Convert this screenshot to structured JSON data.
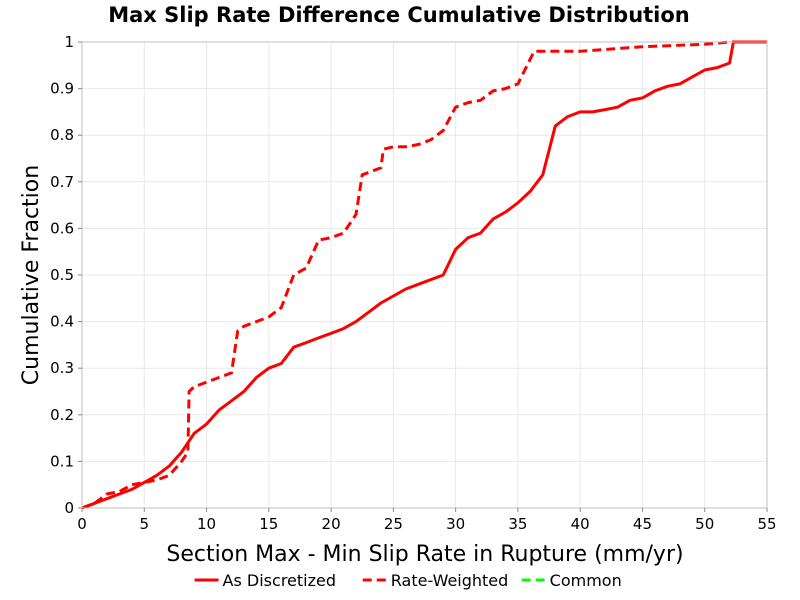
{
  "chart_data": {
    "type": "line",
    "title": "Max Slip Rate Difference Cumulative Distribution",
    "xlabel": "Section Max - Min Slip Rate in Rupture (mm/yr)",
    "ylabel": "Cumulative Fraction",
    "xlim": [
      0,
      55
    ],
    "ylim": [
      0,
      1
    ],
    "xticks": [
      "0",
      "5",
      "10",
      "15",
      "20",
      "25",
      "30",
      "35",
      "40",
      "45",
      "50",
      "55"
    ],
    "yticks": [
      "0",
      "0.1",
      "0.2",
      "0.3",
      "0.4",
      "0.5",
      "0.6",
      "0.7",
      "0.8",
      "0.9",
      "1"
    ],
    "grid": true,
    "legend_position": "bottom",
    "series": [
      {
        "name": "As Discretized",
        "color": "#ff0000",
        "style": "solid",
        "points": [
          [
            0,
            0
          ],
          [
            1,
            0.01
          ],
          [
            2,
            0.02
          ],
          [
            3,
            0.03
          ],
          [
            4,
            0.04
          ],
          [
            5,
            0.055
          ],
          [
            6,
            0.07
          ],
          [
            7,
            0.09
          ],
          [
            8,
            0.12
          ],
          [
            8.5,
            0.14
          ],
          [
            9,
            0.16
          ],
          [
            10,
            0.18
          ],
          [
            11,
            0.21
          ],
          [
            12,
            0.23
          ],
          [
            13,
            0.25
          ],
          [
            14,
            0.28
          ],
          [
            15,
            0.3
          ],
          [
            16,
            0.31
          ],
          [
            17,
            0.345
          ],
          [
            18,
            0.355
          ],
          [
            19,
            0.365
          ],
          [
            20,
            0.375
          ],
          [
            21,
            0.385
          ],
          [
            22,
            0.4
          ],
          [
            23,
            0.42
          ],
          [
            24,
            0.44
          ],
          [
            25,
            0.455
          ],
          [
            26,
            0.47
          ],
          [
            27,
            0.48
          ],
          [
            28,
            0.49
          ],
          [
            29,
            0.5
          ],
          [
            30,
            0.555
          ],
          [
            31,
            0.58
          ],
          [
            32,
            0.59
          ],
          [
            33,
            0.62
          ],
          [
            34,
            0.635
          ],
          [
            35,
            0.655
          ],
          [
            36,
            0.68
          ],
          [
            37,
            0.715
          ],
          [
            38,
            0.82
          ],
          [
            39,
            0.84
          ],
          [
            40,
            0.85
          ],
          [
            41,
            0.85
          ],
          [
            42,
            0.855
          ],
          [
            43,
            0.86
          ],
          [
            44,
            0.875
          ],
          [
            45,
            0.88
          ],
          [
            46,
            0.895
          ],
          [
            47,
            0.905
          ],
          [
            48,
            0.91
          ],
          [
            49,
            0.925
          ],
          [
            50,
            0.94
          ],
          [
            51,
            0.945
          ],
          [
            52,
            0.955
          ],
          [
            52.3,
            1.0
          ],
          [
            55,
            1.0
          ]
        ]
      },
      {
        "name": "Rate-Weighted",
        "color": "#ff0000",
        "style": "dashed",
        "points": [
          [
            0,
            0
          ],
          [
            1,
            0.01
          ],
          [
            2,
            0.03
          ],
          [
            3,
            0.035
          ],
          [
            4,
            0.05
          ],
          [
            5,
            0.055
          ],
          [
            6,
            0.06
          ],
          [
            7,
            0.07
          ],
          [
            8,
            0.1
          ],
          [
            8.5,
            0.12
          ],
          [
            8.6,
            0.25
          ],
          [
            9,
            0.26
          ],
          [
            10,
            0.27
          ],
          [
            11,
            0.28
          ],
          [
            12,
            0.29
          ],
          [
            12.5,
            0.38
          ],
          [
            13,
            0.39
          ],
          [
            14,
            0.4
          ],
          [
            15,
            0.41
          ],
          [
            16,
            0.43
          ],
          [
            17,
            0.5
          ],
          [
            18,
            0.515
          ],
          [
            19,
            0.575
          ],
          [
            20,
            0.58
          ],
          [
            21,
            0.59
          ],
          [
            22,
            0.63
          ],
          [
            22.5,
            0.715
          ],
          [
            23,
            0.72
          ],
          [
            24,
            0.73
          ],
          [
            24.2,
            0.77
          ],
          [
            25,
            0.775
          ],
          [
            26,
            0.775
          ],
          [
            27,
            0.78
          ],
          [
            28,
            0.79
          ],
          [
            29,
            0.81
          ],
          [
            30,
            0.86
          ],
          [
            31,
            0.87
          ],
          [
            32,
            0.875
          ],
          [
            33,
            0.895
          ],
          [
            34,
            0.9
          ],
          [
            35,
            0.91
          ],
          [
            36.3,
            0.98
          ],
          [
            37,
            0.98
          ],
          [
            40,
            0.98
          ],
          [
            45,
            0.99
          ],
          [
            50,
            0.995
          ],
          [
            52,
            1.0
          ],
          [
            55,
            1.0
          ]
        ]
      },
      {
        "name": "Common",
        "color": "#00ff00",
        "style": "dashed",
        "points": []
      }
    ]
  }
}
